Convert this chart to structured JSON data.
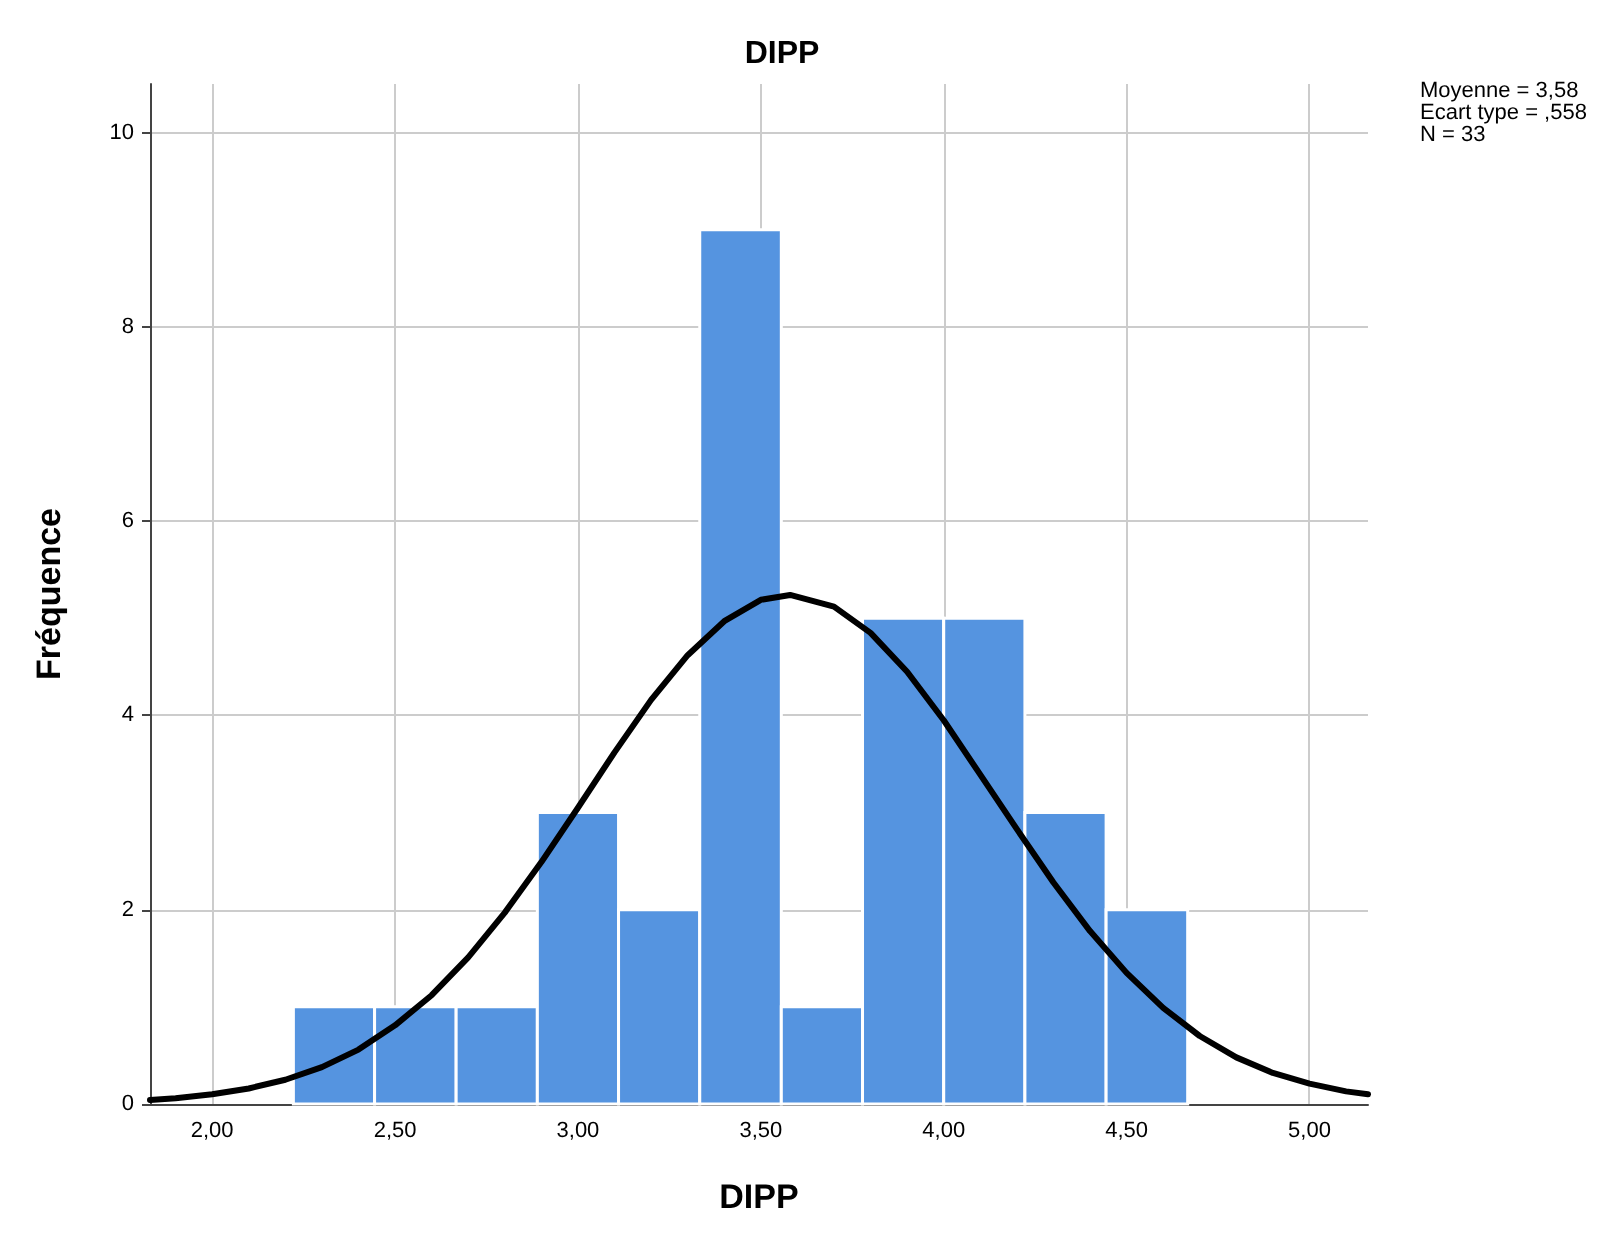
{
  "chart_data": {
    "type": "histogram",
    "title": "DIPP",
    "xlabel": "DIPP",
    "ylabel": "Fréquence",
    "bins": [
      2.222,
      2.444,
      2.667,
      2.889,
      3.111,
      3.333,
      3.556,
      3.778,
      4.0,
      4.222,
      4.444,
      4.667
    ],
    "values": [
      1,
      1,
      1,
      3,
      2,
      9,
      1,
      5,
      5,
      3,
      2
    ],
    "color": "#5594e0",
    "series": [
      {
        "type": "line",
        "color": "#000000",
        "marker": "none",
        "x": [
          1.83,
          1.9,
          2.0,
          2.1,
          2.2,
          2.3,
          2.4,
          2.5,
          2.6,
          2.7,
          2.8,
          2.9,
          3.0,
          3.1,
          3.2,
          3.3,
          3.4,
          3.5,
          3.58,
          3.7,
          3.8,
          3.9,
          4.0,
          4.1,
          4.2,
          4.3,
          4.4,
          4.5,
          4.6,
          4.7,
          4.8,
          4.9,
          5.0,
          5.1,
          5.16
        ],
        "values": [
          0.04,
          0.06,
          0.1,
          0.16,
          0.25,
          0.38,
          0.56,
          0.81,
          1.12,
          1.51,
          1.97,
          2.49,
          3.05,
          3.62,
          4.16,
          4.62,
          4.97,
          5.19,
          5.24,
          5.12,
          4.85,
          4.45,
          3.95,
          3.39,
          2.83,
          2.28,
          1.78,
          1.35,
          0.99,
          0.7,
          0.48,
          0.32,
          0.21,
          0.13,
          0.1
        ]
      }
    ],
    "xlim": [
      1.83,
      5.16
    ],
    "ylim": [
      0,
      10.5
    ],
    "xticks": [
      {
        "value": 2,
        "label": "2,00"
      },
      {
        "value": 2.5,
        "label": "2,50"
      },
      {
        "value": 3,
        "label": "3,00"
      },
      {
        "value": 3.5,
        "label": "3,50"
      },
      {
        "value": 4,
        "label": "4,00"
      },
      {
        "value": 4.5,
        "label": "4,50"
      },
      {
        "value": 5,
        "label": "5,00"
      }
    ],
    "yticks": [
      0,
      2,
      4,
      6,
      8,
      10
    ],
    "grid": true,
    "annotations": [
      "Moyenne = 3,58",
      "Ecart type = ,558",
      "N = 33"
    ]
  }
}
